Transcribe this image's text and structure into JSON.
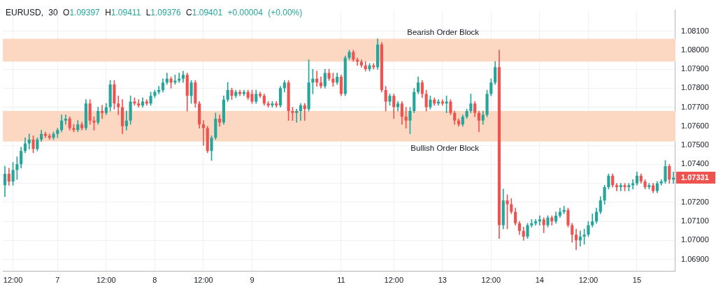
{
  "chart_data": {
    "type": "candlestick",
    "title": "EURUSD, 30 O1.09397 H1.09411 L1.09376 C1.09401 +0.00004 (+0.00%)",
    "categories": [
      null,
      null,
      "12:00",
      null,
      null,
      null,
      null,
      null,
      null,
      null,
      null,
      null,
      null,
      "7",
      null,
      null,
      null,
      null,
      null,
      null,
      null,
      null,
      null,
      null,
      null,
      "12:00",
      null,
      null,
      null,
      null,
      null,
      null,
      null,
      null,
      null,
      null,
      null,
      "8",
      null,
      null,
      null,
      null,
      null,
      null,
      null,
      null,
      null,
      null,
      null,
      "12:00",
      null,
      null,
      null,
      null,
      null,
      null,
      null,
      null,
      null,
      null,
      null,
      "9",
      null,
      null,
      null,
      null,
      null,
      null,
      null,
      null,
      null,
      null,
      null,
      null,
      null,
      null,
      null,
      null,
      null,
      null,
      null,
      null,
      null,
      "11",
      null,
      null,
      null,
      null,
      null,
      null,
      null,
      null,
      null,
      null,
      null,
      null,
      "12:00",
      null,
      null,
      null,
      null,
      null,
      null,
      null,
      null,
      null,
      null,
      null,
      "13",
      null,
      null,
      null,
      null,
      null,
      null,
      null,
      null,
      null,
      null,
      null,
      "12:00",
      null,
      null,
      null,
      null,
      null,
      null,
      null,
      null,
      null,
      null,
      null,
      "14",
      null,
      null,
      null,
      null,
      null,
      null,
      null,
      null,
      null,
      null,
      null,
      "12:00",
      null,
      null,
      null,
      null,
      null,
      null,
      null,
      null,
      null,
      null,
      null,
      "15",
      null,
      null,
      null,
      null,
      null,
      null,
      null,
      null,
      null
    ],
    "ohlc": [
      [
        1.0729,
        1.0739,
        1.0723,
        1.0735
      ],
      [
        1.0735,
        1.0738,
        1.0729,
        1.0731
      ],
      [
        1.0731,
        1.0741,
        1.0729,
        1.0737
      ],
      [
        1.0737,
        1.0744,
        1.0732,
        1.074
      ],
      [
        1.074,
        1.0749,
        1.0738,
        1.0747
      ],
      [
        1.0747,
        1.0754,
        1.0746,
        1.0751
      ],
      [
        1.0751,
        1.0756,
        1.0748,
        1.0753
      ],
      [
        1.0753,
        1.0755,
        1.0746,
        1.0748
      ],
      [
        1.0748,
        1.0754,
        1.0747,
        1.0753
      ],
      [
        1.0753,
        1.0758,
        1.0752,
        1.0756
      ],
      [
        1.0756,
        1.0757,
        1.0754,
        1.0755
      ],
      [
        1.0755,
        1.0756,
        1.0753,
        1.0754
      ],
      [
        1.0754,
        1.0757,
        1.0753,
        1.0756
      ],
      [
        1.0756,
        1.0759,
        1.0754,
        1.0758
      ],
      [
        1.0758,
        1.0766,
        1.0757,
        1.0763
      ],
      [
        1.0763,
        1.0766,
        1.0761,
        1.0764
      ],
      [
        1.0764,
        1.0765,
        1.0758,
        1.0759
      ],
      [
        1.0759,
        1.0761,
        1.0757,
        1.0758
      ],
      [
        1.0758,
        1.0763,
        1.0757,
        1.0761
      ],
      [
        1.0761,
        1.0762,
        1.0758,
        1.0759
      ],
      [
        1.0759,
        1.0774,
        1.0758,
        1.0772
      ],
      [
        1.0772,
        1.0774,
        1.0761,
        1.0763
      ],
      [
        1.0763,
        1.0765,
        1.0758,
        1.0762
      ],
      [
        1.0762,
        1.077,
        1.0761,
        1.0768
      ],
      [
        1.0768,
        1.0771,
        1.0764,
        1.0767
      ],
      [
        1.0767,
        1.0772,
        1.0766,
        1.077
      ],
      [
        1.077,
        1.0784,
        1.0768,
        1.0782
      ],
      [
        1.0782,
        1.0784,
        1.0769,
        1.0772
      ],
      [
        1.0772,
        1.0776,
        1.0766,
        1.077
      ],
      [
        1.077,
        1.0774,
        1.0756,
        1.076
      ],
      [
        1.076,
        1.0768,
        1.0758,
        1.0763
      ],
      [
        1.0763,
        1.0776,
        1.0761,
        1.0773
      ],
      [
        1.0773,
        1.0775,
        1.0771,
        1.0772
      ],
      [
        1.0772,
        1.0774,
        1.077,
        1.0771
      ],
      [
        1.0771,
        1.0775,
        1.077,
        1.0773
      ],
      [
        1.0773,
        1.0774,
        1.0771,
        1.0772
      ],
      [
        1.0772,
        1.0778,
        1.0771,
        1.0776
      ],
      [
        1.0776,
        1.0779,
        1.0775,
        1.0778
      ],
      [
        1.0778,
        1.0781,
        1.0777,
        1.0779
      ],
      [
        1.0779,
        1.0785,
        1.0778,
        1.0783
      ],
      [
        1.0783,
        1.0788,
        1.0782,
        1.0785
      ],
      [
        1.0785,
        1.0786,
        1.078,
        1.0783
      ],
      [
        1.0783,
        1.0787,
        1.0782,
        1.0784
      ],
      [
        1.0784,
        1.0788,
        1.0783,
        1.0785
      ],
      [
        1.0785,
        1.0789,
        1.0783,
        1.0787
      ],
      [
        1.0787,
        1.0788,
        1.0768,
        1.0776
      ],
      [
        1.0776,
        1.0784,
        1.0772,
        1.0783
      ],
      [
        1.0783,
        1.0784,
        1.077,
        1.0772
      ],
      [
        1.0772,
        1.0773,
        1.0759,
        1.0761
      ],
      [
        1.0761,
        1.0763,
        1.075,
        1.0759
      ],
      [
        1.0759,
        1.076,
        1.0746,
        1.0747
      ],
      [
        1.0747,
        1.0755,
        1.0742,
        1.0754
      ],
      [
        1.0754,
        1.0767,
        1.0753,
        1.0764
      ],
      [
        1.0764,
        1.0766,
        1.076,
        1.0762
      ],
      [
        1.0762,
        1.0776,
        1.0761,
        1.0774
      ],
      [
        1.0774,
        1.0783,
        1.0773,
        1.0779
      ],
      [
        1.0779,
        1.078,
        1.0774,
        1.0776
      ],
      [
        1.0776,
        1.0779,
        1.0775,
        1.0778
      ],
      [
        1.0778,
        1.0779,
        1.0776,
        1.0777
      ],
      [
        1.0777,
        1.0779,
        1.0776,
        1.0778
      ],
      [
        1.0778,
        1.0779,
        1.0774,
        1.0775
      ],
      [
        1.0777,
        1.0779,
        1.0772,
        1.0773
      ],
      [
        1.0773,
        1.0779,
        1.0772,
        1.0777
      ],
      [
        1.0777,
        1.0778,
        1.0775,
        1.0776
      ],
      [
        1.0776,
        1.0777,
        1.0771,
        1.0772
      ],
      [
        1.0772,
        1.0773,
        1.077,
        1.0771
      ],
      [
        1.0771,
        1.0773,
        1.077,
        1.0772
      ],
      [
        1.0772,
        1.0773,
        1.077,
        1.0771
      ],
      [
        1.0771,
        1.0781,
        1.077,
        1.078
      ],
      [
        1.078,
        1.0784,
        1.0778,
        1.0783
      ],
      [
        1.0783,
        1.0784,
        1.0763,
        1.0768
      ],
      [
        1.0768,
        1.077,
        1.0763,
        1.0767
      ],
      [
        1.0767,
        1.0769,
        1.0762,
        1.0768
      ],
      [
        1.0768,
        1.0772,
        1.0763,
        1.0771
      ],
      [
        1.0771,
        1.0772,
        1.0763,
        1.0769
      ],
      [
        1.0769,
        1.0795,
        1.0768,
        1.0783
      ],
      [
        1.0783,
        1.079,
        1.0777,
        1.0785
      ],
      [
        1.0785,
        1.0789,
        1.0781,
        1.0783
      ],
      [
        1.0783,
        1.0786,
        1.078,
        1.0781
      ],
      [
        1.0781,
        1.079,
        1.078,
        1.0788
      ],
      [
        1.0788,
        1.079,
        1.0784,
        1.0785
      ],
      [
        1.0785,
        1.0788,
        1.0781,
        1.0783
      ],
      [
        1.0783,
        1.0788,
        1.0782,
        1.0786
      ],
      [
        1.0786,
        1.0787,
        1.0776,
        1.0777
      ],
      [
        1.0777,
        1.0797,
        1.0776,
        1.0796
      ],
      [
        1.0796,
        1.08,
        1.0795,
        1.0799
      ],
      [
        1.0799,
        1.08,
        1.0794,
        1.0795
      ],
      [
        1.0795,
        1.0796,
        1.0792,
        1.0794
      ],
      [
        1.0794,
        1.0795,
        1.0791,
        1.0792
      ],
      [
        1.0792,
        1.0794,
        1.0789,
        1.079
      ],
      [
        1.079,
        1.0793,
        1.0789,
        1.0792
      ],
      [
        1.0792,
        1.0793,
        1.079,
        1.0791
      ],
      [
        1.0791,
        1.0806,
        1.079,
        1.0803
      ],
      [
        1.0803,
        1.0804,
        1.0778,
        1.0779
      ],
      [
        1.0779,
        1.0781,
        1.0768,
        1.0773
      ],
      [
        1.0773,
        1.0777,
        1.0771,
        1.0776
      ],
      [
        1.0776,
        1.0777,
        1.0764,
        1.077
      ],
      [
        1.077,
        1.0773,
        1.0768,
        1.0772
      ],
      [
        1.0772,
        1.0773,
        1.0761,
        1.0765
      ],
      [
        1.0765,
        1.077,
        1.0759,
        1.0763
      ],
      [
        1.0763,
        1.077,
        1.0756,
        1.0768
      ],
      [
        1.0768,
        1.078,
        1.0767,
        1.0778
      ],
      [
        1.0778,
        1.0786,
        1.0777,
        1.0783
      ],
      [
        1.0783,
        1.0784,
        1.0775,
        1.0777
      ],
      [
        1.0777,
        1.0779,
        1.0768,
        1.077
      ],
      [
        1.077,
        1.0776,
        1.0769,
        1.0774
      ],
      [
        1.0774,
        1.0775,
        1.0771,
        1.0772
      ],
      [
        1.0772,
        1.0774,
        1.0771,
        1.0773
      ],
      [
        1.0773,
        1.0774,
        1.0771,
        1.0772
      ],
      [
        1.0772,
        1.0776,
        1.0767,
        1.0773
      ],
      [
        1.0773,
        1.0774,
        1.0766,
        1.0767
      ],
      [
        1.0767,
        1.0768,
        1.0761,
        1.0763
      ],
      [
        1.0763,
        1.0764,
        1.076,
        1.0761
      ],
      [
        1.0761,
        1.0766,
        1.076,
        1.0765
      ],
      [
        1.0765,
        1.0769,
        1.0764,
        1.0768
      ],
      [
        1.0768,
        1.0777,
        1.0767,
        1.0772
      ],
      [
        1.0772,
        1.0773,
        1.0765,
        1.0767
      ],
      [
        1.0767,
        1.0768,
        1.0757,
        1.0763
      ],
      [
        1.0763,
        1.0768,
        1.0761,
        1.0766
      ],
      [
        1.0766,
        1.0779,
        1.0765,
        1.0777
      ],
      [
        1.0777,
        1.0785,
        1.0776,
        1.0783
      ],
      [
        1.0783,
        1.0794,
        1.0782,
        1.0791
      ],
      [
        1.0791,
        1.08,
        1.0701,
        1.0708
      ],
      [
        1.0708,
        1.0727,
        1.0706,
        1.0721
      ],
      [
        1.0721,
        1.0724,
        1.0706,
        1.0719
      ],
      [
        1.0719,
        1.0722,
        1.0714,
        1.0715
      ],
      [
        1.0715,
        1.0717,
        1.0708,
        1.0709
      ],
      [
        1.0709,
        1.071,
        1.0703,
        1.0705
      ],
      [
        1.0705,
        1.0707,
        1.07,
        1.0702
      ],
      [
        1.0702,
        1.0709,
        1.0701,
        1.0708
      ],
      [
        1.0708,
        1.0711,
        1.0707,
        1.0709
      ],
      [
        1.0709,
        1.0711,
        1.0708,
        1.071
      ],
      [
        1.071,
        1.0713,
        1.0708,
        1.0711
      ],
      [
        1.0711,
        1.0712,
        1.0704,
        1.0708
      ],
      [
        1.0708,
        1.0713,
        1.0707,
        1.0712
      ],
      [
        1.0712,
        1.0713,
        1.0708,
        1.071
      ],
      [
        1.071,
        1.0715,
        1.0709,
        1.0713
      ],
      [
        1.0713,
        1.0717,
        1.0712,
        1.0715
      ],
      [
        1.0715,
        1.0718,
        1.0714,
        1.0716
      ],
      [
        1.0716,
        1.0717,
        1.0707,
        1.0708
      ],
      [
        1.0708,
        1.0709,
        1.0699,
        1.0703
      ],
      [
        1.0703,
        1.0706,
        1.0695,
        1.07
      ],
      [
        1.07,
        1.0705,
        1.0697,
        1.0702
      ],
      [
        1.0702,
        1.0706,
        1.0698,
        1.0703
      ],
      [
        1.0703,
        1.071,
        1.0702,
        1.0708
      ],
      [
        1.0708,
        1.0714,
        1.0707,
        1.071
      ],
      [
        1.071,
        1.0717,
        1.0709,
        1.0715
      ],
      [
        1.0715,
        1.0723,
        1.0714,
        1.0721
      ],
      [
        1.0721,
        1.0729,
        1.0719,
        1.0728
      ],
      [
        1.0728,
        1.0735,
        1.0727,
        1.0734
      ],
      [
        1.0734,
        1.0735,
        1.0728,
        1.0729
      ],
      [
        1.0729,
        1.073,
        1.0726,
        1.0728
      ],
      [
        1.0728,
        1.073,
        1.0726,
        1.0729
      ],
      [
        1.0729,
        1.073,
        1.0726,
        1.0728
      ],
      [
        1.0728,
        1.073,
        1.0726,
        1.0729
      ],
      [
        1.0729,
        1.0732,
        1.0727,
        1.073
      ],
      [
        1.073,
        1.0736,
        1.0729,
        1.0734
      ],
      [
        1.0734,
        1.0735,
        1.073,
        1.0731
      ],
      [
        1.0731,
        1.0732,
        1.0727,
        1.0728
      ],
      [
        1.0728,
        1.073,
        1.0727,
        1.0729
      ],
      [
        1.0729,
        1.073,
        1.0725,
        1.0726
      ],
      [
        1.0726,
        1.0731,
        1.0725,
        1.073
      ],
      [
        1.073,
        1.0732,
        1.0729,
        1.0731
      ],
      [
        1.0731,
        1.0742,
        1.073,
        1.0739
      ],
      [
        1.0739,
        1.074,
        1.073,
        1.0732
      ],
      [
        1.0732,
        1.0736,
        1.073,
        1.0733
      ]
    ],
    "colors": [
      "#26a69a",
      "#ef5350",
      "#26a69a",
      "#26a69a",
      "#26a69a",
      "#26a69a",
      "#26a69a",
      "#ef5350",
      "#26a69a",
      "#26a69a",
      "#ef5350",
      "#ef5350",
      "#26a69a",
      "#26a69a",
      "#26a69a",
      "#26a69a",
      "#ef5350",
      "#ef5350",
      "#26a69a",
      "#ef5350",
      "#26a69a",
      "#ef5350",
      "#ef5350",
      "#26a69a",
      "#ef5350",
      "#26a69a",
      "#26a69a",
      "#ef5350",
      "#ef5350",
      "#ef5350",
      "#26a69a",
      "#26a69a",
      "#ef5350",
      "#ef5350",
      "#26a69a",
      "#ef5350",
      "#26a69a",
      "#26a69a",
      "#26a69a",
      "#26a69a",
      "#26a69a",
      "#ef5350",
      "#26a69a",
      "#26a69a",
      "#26a69a",
      "#ef5350",
      "#26a69a",
      "#ef5350",
      "#ef5350",
      "#ef5350",
      "#ef5350",
      "#26a69a",
      "#26a69a",
      "#ef5350",
      "#26a69a",
      "#26a69a",
      "#ef5350",
      "#26a69a",
      "#ef5350",
      "#26a69a",
      "#ef5350",
      "#ef5350",
      "#26a69a",
      "#ef5350",
      "#ef5350",
      "#ef5350",
      "#26a69a",
      "#ef5350",
      "#26a69a",
      "#26a69a",
      "#ef5350",
      "#ef5350",
      "#26a69a",
      "#26a69a",
      "#ef5350",
      "#26a69a",
      "#26a69a",
      "#ef5350",
      "#ef5350",
      "#26a69a",
      "#ef5350",
      "#ef5350",
      "#26a69a",
      "#ef5350",
      "#26a69a",
      "#26a69a",
      "#ef5350",
      "#ef5350",
      "#ef5350",
      "#ef5350",
      "#26a69a",
      "#ef5350",
      "#26a69a",
      "#ef5350",
      "#ef5350",
      "#26a69a",
      "#ef5350",
      "#26a69a",
      "#ef5350",
      "#ef5350",
      "#26a69a",
      "#26a69a",
      "#26a69a",
      "#ef5350",
      "#ef5350",
      "#26a69a",
      "#ef5350",
      "#26a69a",
      "#ef5350",
      "#26a69a",
      "#ef5350",
      "#ef5350",
      "#ef5350",
      "#26a69a",
      "#26a69a",
      "#26a69a",
      "#ef5350",
      "#ef5350",
      "#26a69a",
      "#26a69a",
      "#26a69a",
      "#26a69a",
      "#ef5350",
      "#26a69a",
      "#ef5350",
      "#ef5350",
      "#ef5350",
      "#ef5350",
      "#ef5350",
      "#26a69a",
      "#26a69a",
      "#26a69a",
      "#26a69a",
      "#ef5350",
      "#26a69a",
      "#ef5350",
      "#26a69a",
      "#26a69a",
      "#26a69a",
      "#ef5350",
      "#ef5350",
      "#ef5350",
      "#26a69a",
      "#26a69a",
      "#26a69a",
      "#26a69a",
      "#26a69a",
      "#26a69a",
      "#26a69a",
      "#26a69a",
      "#ef5350",
      "#ef5350",
      "#26a69a",
      "#ef5350",
      "#26a69a",
      "#26a69a",
      "#26a69a",
      "#ef5350",
      "#ef5350",
      "#26a69a",
      "#ef5350",
      "#26a69a",
      "#26a69a",
      "#26a69a",
      "#ef5350",
      "#26a69a"
    ],
    "ylim": [
      1.0684,
      1.0821
    ],
    "yticks": [
      {
        "value": 1.069,
        "label": "1.06900"
      },
      {
        "value": 1.07,
        "label": "1.07000"
      },
      {
        "value": 1.071,
        "label": "1.07100"
      },
      {
        "value": 1.072,
        "label": "1.07200"
      },
      {
        "value": 1.073,
        "label": null
      },
      {
        "value": 1.074,
        "label": "1.07400"
      },
      {
        "value": 1.075,
        "label": "1.07500"
      },
      {
        "value": 1.076,
        "label": "1.07600"
      },
      {
        "value": 1.077,
        "label": "1.07700"
      },
      {
        "value": 1.078,
        "label": "1.07800"
      },
      {
        "value": 1.079,
        "label": "1.07900"
      },
      {
        "value": 1.08,
        "label": "1.08000"
      },
      {
        "value": 1.081,
        "label": "1.08100"
      }
    ],
    "grid": true,
    "bands": [
      {
        "axis": "y",
        "from": 1.0794,
        "to": 1.0806,
        "label": "Bearish Order Block",
        "color": "#fcd8c3"
      },
      {
        "axis": "y",
        "from": 1.0752,
        "to": 1.0768,
        "label": "Bullish Order Block",
        "color": "#fcd8c3"
      }
    ],
    "annotations": [
      "1.07331"
    ]
  }
}
